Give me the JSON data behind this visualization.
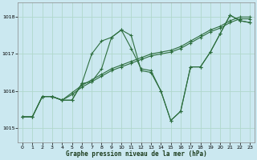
{
  "title": "Graphe pression niveau de la mer (hPa)",
  "bg_color": "#cbe8f0",
  "grid_color": "#b0d8cc",
  "line_color": "#2d6e3e",
  "xlim": [
    -0.5,
    23.5
  ],
  "ylim": [
    1014.6,
    1018.4
  ],
  "yticks": [
    1015,
    1016,
    1017,
    1018
  ],
  "xticks": [
    0,
    1,
    2,
    3,
    4,
    5,
    6,
    7,
    8,
    9,
    10,
    11,
    12,
    13,
    14,
    15,
    16,
    17,
    18,
    19,
    20,
    21,
    22,
    23
  ],
  "lines": [
    {
      "x": [
        0,
        1,
        2,
        3,
        4,
        5,
        6,
        7,
        8,
        9,
        10,
        11,
        12,
        13,
        14,
        15,
        16,
        17,
        18,
        19,
        20,
        21,
        22,
        23
      ],
      "y": [
        1015.3,
        1015.3,
        1015.85,
        1015.85,
        1015.75,
        1015.75,
        1016.2,
        1017.0,
        1017.35,
        1017.45,
        1017.65,
        1017.15,
        1016.6,
        1016.55,
        1016.0,
        1015.2,
        1015.45,
        1016.65,
        1016.65,
        1017.05,
        1017.55,
        1018.05,
        1017.9,
        1017.85
      ]
    },
    {
      "x": [
        0,
        1,
        2,
        3,
        4,
        5,
        6,
        7,
        8,
        9,
        10,
        11,
        12,
        13,
        14,
        15,
        16,
        17,
        18,
        19,
        20,
        21,
        22,
        23
      ],
      "y": [
        1015.3,
        1015.3,
        1015.85,
        1015.85,
        1015.75,
        1015.9,
        1016.1,
        1016.25,
        1016.4,
        1016.55,
        1016.65,
        1016.75,
        1016.85,
        1016.95,
        1017.0,
        1017.05,
        1017.15,
        1017.3,
        1017.45,
        1017.6,
        1017.7,
        1017.85,
        1017.95,
        1017.95
      ]
    },
    {
      "x": [
        0,
        1,
        2,
        3,
        4,
        5,
        6,
        7,
        8,
        9,
        10,
        11,
        12,
        13,
        14,
        15,
        16,
        17,
        18,
        19,
        20,
        21,
        22,
        23
      ],
      "y": [
        1015.3,
        1015.3,
        1015.85,
        1015.85,
        1015.75,
        1015.95,
        1016.15,
        1016.3,
        1016.45,
        1016.6,
        1016.7,
        1016.8,
        1016.9,
        1017.0,
        1017.05,
        1017.1,
        1017.2,
        1017.35,
        1017.5,
        1017.65,
        1017.75,
        1017.9,
        1018.0,
        1018.0
      ]
    },
    {
      "x": [
        2,
        3,
        4,
        5,
        6,
        7,
        8,
        9,
        10,
        11,
        12,
        13,
        14,
        15,
        16,
        17,
        18,
        19,
        20,
        21,
        22,
        23
      ],
      "y": [
        1015.85,
        1015.85,
        1015.75,
        1015.75,
        1016.2,
        1016.25,
        1016.6,
        1017.45,
        1017.65,
        1017.5,
        1016.55,
        1016.5,
        1016.0,
        1015.2,
        1015.45,
        1016.65,
        1016.65,
        1017.05,
        1017.55,
        1018.05,
        1017.9,
        1017.85
      ]
    }
  ]
}
